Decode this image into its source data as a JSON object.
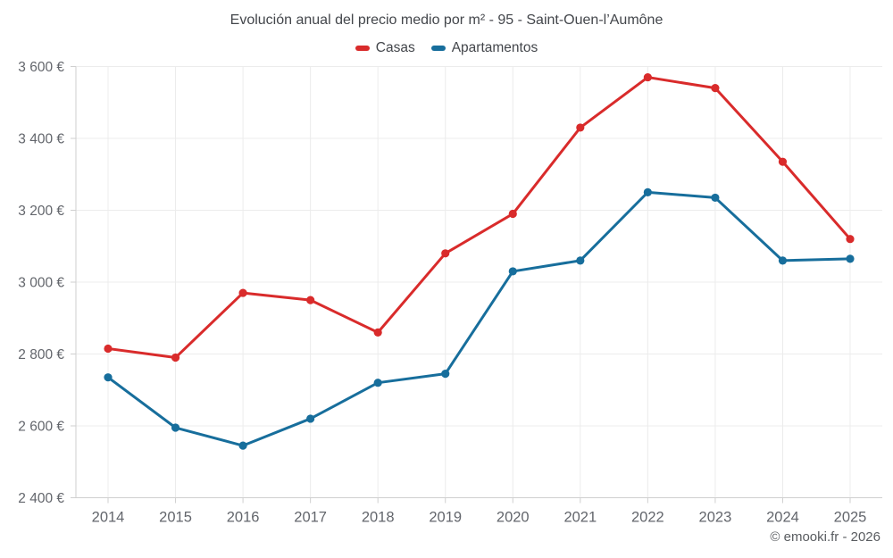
{
  "chart_data": {
    "type": "line",
    "title": "Evolución anual del precio medio por m² - 95 - Saint-Ouen-l’Aumône",
    "categories": [
      "2014",
      "2015",
      "2016",
      "2017",
      "2018",
      "2019",
      "2020",
      "2021",
      "2022",
      "2023",
      "2024",
      "2025"
    ],
    "series": [
      {
        "name": "Casas",
        "color": "#d92b2b",
        "values": [
          2815,
          2790,
          2970,
          2950,
          2860,
          3080,
          3190,
          3430,
          3570,
          3540,
          3335,
          3120
        ]
      },
      {
        "name": "Apartamentos",
        "color": "#176e9c",
        "values": [
          2735,
          2595,
          2545,
          2620,
          2720,
          2745,
          3030,
          3060,
          3250,
          3235,
          3060,
          3065
        ]
      }
    ],
    "xlabel": "",
    "ylabel": "",
    "ylim": [
      2400,
      3600
    ],
    "ytick_step": 200,
    "y_tick_suffix": " €",
    "grid": "on",
    "legend_position": "top",
    "colors": {
      "gridline": "#ececec",
      "axis_line": "#cfcfcf",
      "tick_label": "#63666c",
      "title_text": "#43464b"
    }
  },
  "footer": {
    "credit": "© emooki.fr - 2026"
  }
}
